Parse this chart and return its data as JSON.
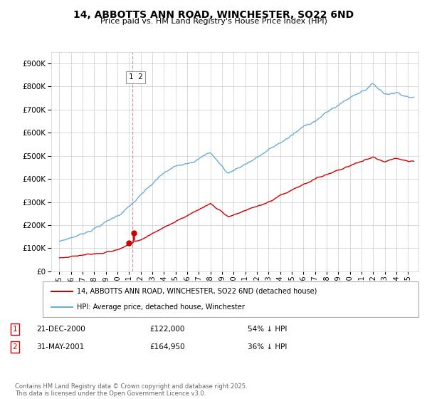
{
  "title": "14, ABBOTTS ANN ROAD, WINCHESTER, SO22 6ND",
  "subtitle": "Price paid vs. HM Land Registry's House Price Index (HPI)",
  "ylim": [
    0,
    950000
  ],
  "yticks": [
    0,
    100000,
    200000,
    300000,
    400000,
    500000,
    600000,
    700000,
    800000,
    900000
  ],
  "hpi_color": "#6baed6",
  "price_color": "#cc0000",
  "marker_color": "#cc0000",
  "vline_color": "#cc99aa",
  "grid_color": "#cccccc",
  "bg_color": "#ffffff",
  "legend_label_red": "14, ABBOTTS ANN ROAD, WINCHESTER, SO22 6ND (detached house)",
  "legend_label_blue": "HPI: Average price, detached house, Winchester",
  "sale1_date": "21-DEC-2000",
  "sale1_price": "£122,000",
  "sale1_hpi": "54% ↓ HPI",
  "sale2_date": "31-MAY-2001",
  "sale2_price": "£164,950",
  "sale2_hpi": "36% ↓ HPI",
  "footer": "Contains HM Land Registry data © Crown copyright and database right 2025.\nThis data is licensed under the Open Government Licence v3.0.",
  "sale1_year": 2001.0,
  "sale2_year": 2001.42,
  "sale1_value": 122000,
  "sale2_value": 164950,
  "xlim_left": 1994.3,
  "xlim_right": 2025.9
}
